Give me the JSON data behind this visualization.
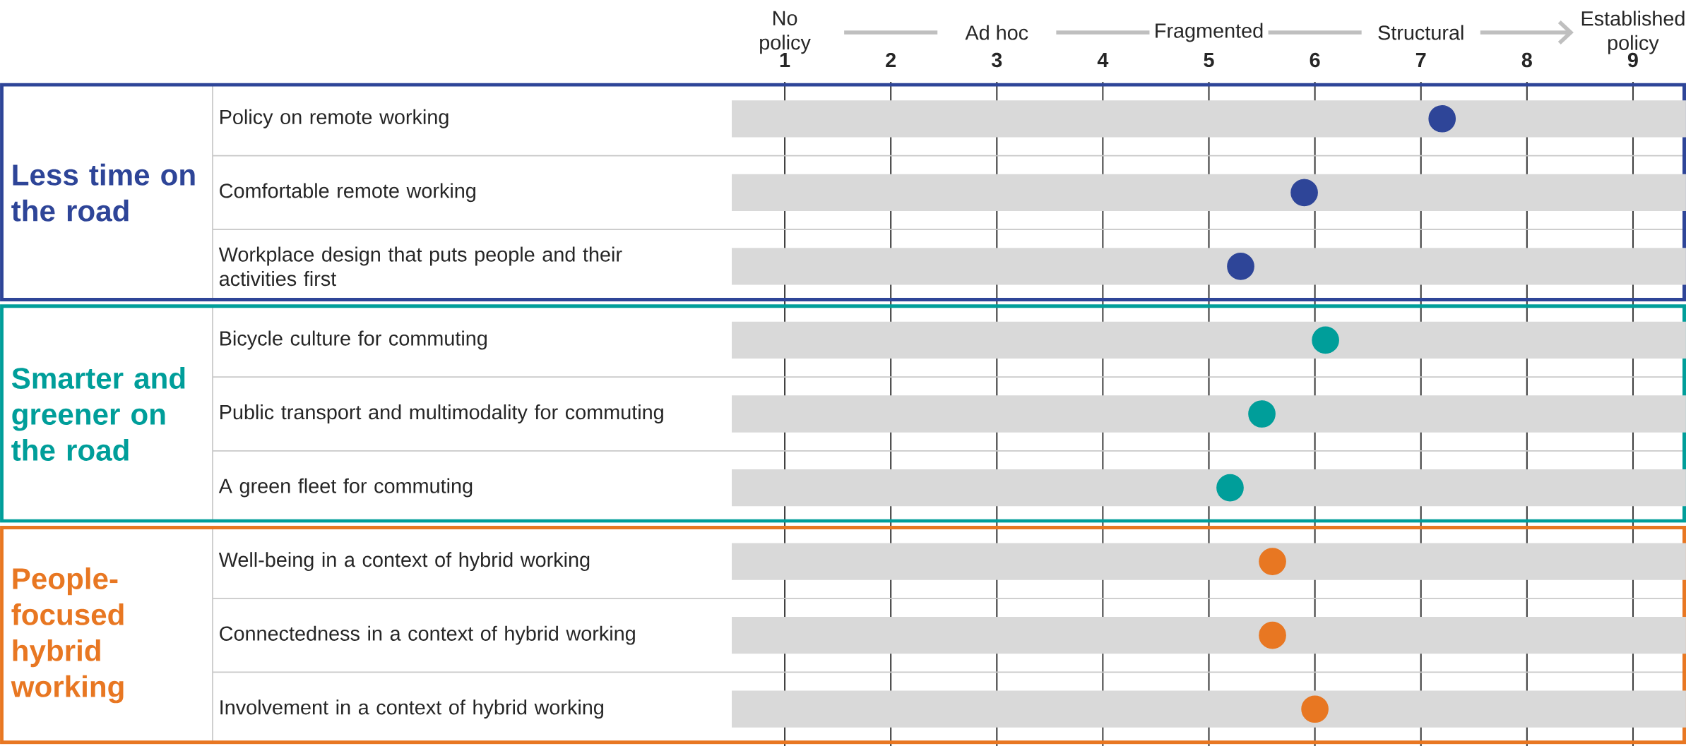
{
  "chart_data": {
    "type": "scatter",
    "orientation": "horizontal",
    "categories": [
      "Policy on remote working",
      "Comfortable remote working",
      "Workplace design that puts people and their activities first",
      "Bicycle culture for commuting",
      "Public transport and multimodality for commuting",
      "A green fleet for commuting",
      "Well-being in a context of hybrid working",
      "Connectedness in a context of hybrid working",
      "Involvement in a context of hybrid working"
    ],
    "series": [
      {
        "type": "bar",
        "color": "#d9d9d9",
        "values": [
          9,
          9,
          9,
          9,
          9,
          9,
          9,
          9,
          9
        ],
        "base": [
          0.5,
          0.5,
          0.5,
          0.5,
          0.5,
          0.5,
          0.5,
          0.5,
          0.5
        ]
      },
      {
        "name": "Less time on the road",
        "color": "#2e4598",
        "values": [
          7.2,
          5.9,
          5.3,
          null,
          null,
          null,
          null,
          null,
          null
        ]
      },
      {
        "name": "Smarter and greener on the road",
        "color": "#009e9a",
        "values": [
          null,
          null,
          null,
          6.1,
          5.5,
          5.2,
          null,
          null,
          null
        ]
      },
      {
        "name": "People-focused hybrid working",
        "color": "#e87722",
        "values": [
          null,
          null,
          null,
          null,
          null,
          null,
          5.6,
          5.6,
          6.0
        ]
      }
    ],
    "xlim": [
      0.5,
      9.5
    ],
    "xticks": [
      1,
      2,
      3,
      4,
      5,
      6,
      7,
      8,
      9
    ],
    "annotations": [
      "No policy",
      "Ad hoc",
      "Fragmented",
      "Structural",
      "Established policy"
    ],
    "grid": "x"
  }
}
